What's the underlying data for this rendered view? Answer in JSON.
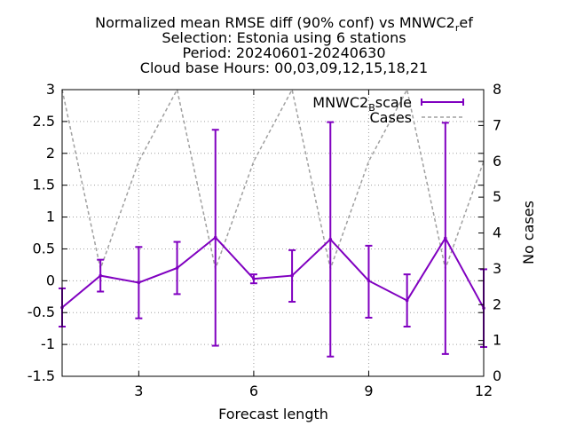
{
  "chart_data": {
    "type": "line",
    "title_lines": [
      "Normalized mean RMSE diff (90% conf) vs MNWC2_ref",
      "Selection: Estonia using     6 stations",
      "Period: 20240601-20240630",
      "Cloud base   Hours: 00,03,09,12,15,18,21"
    ],
    "xlabel": "Forecast length",
    "ylabel_right": "No cases",
    "xlim": [
      1,
      12
    ],
    "ylim": [
      -1.5,
      3
    ],
    "y2lim": [
      0,
      8
    ],
    "x_ticks": [
      3,
      6,
      9,
      12
    ],
    "y_ticks": [
      -1.5,
      -1,
      -0.5,
      0,
      0.5,
      1,
      1.5,
      2,
      2.5,
      3
    ],
    "y_tick_labels": [
      "-1.5",
      "-1",
      "-0.5",
      "0",
      "0.5",
      "1",
      "1.5",
      "2",
      "2.5",
      "3"
    ],
    "y2_ticks": [
      0,
      1,
      2,
      3,
      4,
      5,
      6,
      7,
      8
    ],
    "grid": true,
    "legend_position": "top-right",
    "series": [
      {
        "name": "MNWC2_Bscale",
        "color": "#8000c0",
        "kind": "line-errorbars",
        "x": [
          1,
          2,
          3,
          4,
          5,
          6,
          7,
          8,
          9,
          10,
          11,
          12
        ],
        "y": [
          -0.42,
          0.08,
          -0.03,
          0.2,
          0.68,
          0.03,
          0.08,
          0.65,
          0.0,
          -0.31,
          0.67,
          -0.43
        ],
        "y_low": [
          -0.72,
          -0.17,
          -0.59,
          -0.21,
          -1.02,
          -0.04,
          -0.33,
          -1.19,
          -0.58,
          -0.72,
          -1.15,
          -1.04
        ],
        "y_high": [
          -0.12,
          0.33,
          0.53,
          0.61,
          2.37,
          0.1,
          0.48,
          2.49,
          0.55,
          0.1,
          2.48,
          0.18
        ]
      },
      {
        "name": "Cases",
        "color": "#a0a0a0",
        "kind": "dashed-line",
        "axis": "right",
        "x": [
          1,
          2,
          3,
          4,
          5,
          6,
          7,
          8,
          9,
          10,
          11,
          12
        ],
        "y": [
          8,
          3,
          6,
          8,
          3,
          6,
          8,
          3,
          6,
          8,
          3,
          6
        ]
      }
    ]
  }
}
